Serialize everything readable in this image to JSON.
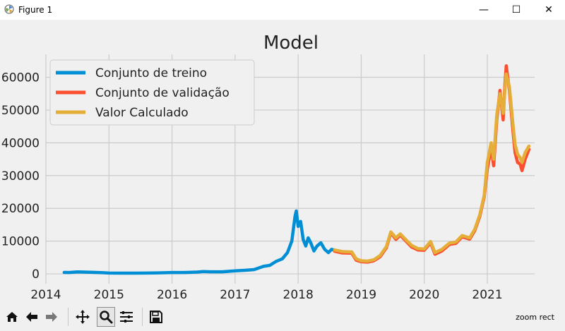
{
  "window": {
    "title": "Figure 1",
    "controls": {
      "minimize": "—",
      "maximize": "☐",
      "close": "✕"
    }
  },
  "toolbar": {
    "buttons": [
      {
        "icon": "home-icon",
        "label": "Home"
      },
      {
        "icon": "back-arrow-icon",
        "label": "Back"
      },
      {
        "icon": "forward-arrow-icon",
        "label": "Forward"
      },
      {
        "icon": "pan-icon",
        "label": "Pan"
      },
      {
        "icon": "zoom-icon",
        "label": "Zoom"
      },
      {
        "icon": "subplots-icon",
        "label": "Subplots"
      },
      {
        "icon": "save-icon",
        "label": "Save"
      }
    ],
    "status_text": "zoom rect"
  },
  "chart_data": {
    "type": "line",
    "title": "Model",
    "xlabel": "",
    "ylabel": "",
    "xlim": [
      2014.0,
      2021.75
    ],
    "ylim": [
      -3000,
      67000
    ],
    "x_ticks": [
      2014,
      2015,
      2016,
      2017,
      2018,
      2019,
      2020,
      2021
    ],
    "x_tick_labels": [
      "2014",
      "2015",
      "2016",
      "2017",
      "2018",
      "2019",
      "2020",
      "2021"
    ],
    "y_ticks": [
      0,
      10000,
      20000,
      30000,
      40000,
      50000,
      60000
    ],
    "y_tick_labels": [
      "0",
      "10000",
      "20000",
      "30000",
      "40000",
      "50000",
      "60000"
    ],
    "grid": true,
    "legend_position": "upper-left",
    "series": [
      {
        "name": "Conjunto de treino",
        "color": "#008fd5",
        "points": [
          [
            2014.29,
            450
          ],
          [
            2014.37,
            420
          ],
          [
            2014.5,
            600
          ],
          [
            2014.7,
            500
          ],
          [
            2014.9,
            350
          ],
          [
            2015.0,
            260
          ],
          [
            2015.2,
            240
          ],
          [
            2015.4,
            230
          ],
          [
            2015.6,
            260
          ],
          [
            2015.8,
            320
          ],
          [
            2016.0,
            420
          ],
          [
            2016.2,
            430
          ],
          [
            2016.4,
            560
          ],
          [
            2016.5,
            700
          ],
          [
            2016.6,
            650
          ],
          [
            2016.8,
            640
          ],
          [
            2017.0,
            950
          ],
          [
            2017.15,
            1100
          ],
          [
            2017.3,
            1300
          ],
          [
            2017.45,
            2300
          ],
          [
            2017.55,
            2600
          ],
          [
            2017.65,
            3800
          ],
          [
            2017.75,
            4600
          ],
          [
            2017.83,
            6500
          ],
          [
            2017.9,
            10000
          ],
          [
            2017.95,
            17500
          ],
          [
            2017.97,
            19200
          ],
          [
            2018.0,
            14500
          ],
          [
            2018.04,
            16000
          ],
          [
            2018.08,
            10500
          ],
          [
            2018.12,
            8500
          ],
          [
            2018.16,
            11000
          ],
          [
            2018.2,
            9500
          ],
          [
            2018.25,
            7000
          ],
          [
            2018.3,
            8500
          ],
          [
            2018.36,
            9500
          ],
          [
            2018.42,
            7500
          ],
          [
            2018.48,
            6500
          ],
          [
            2018.53,
            7500
          ],
          [
            2018.58,
            7200
          ]
        ]
      },
      {
        "name": "Conjunto de validação",
        "color": "#fc4f30",
        "points": [
          [
            2018.58,
            6900
          ],
          [
            2018.7,
            6400
          ],
          [
            2018.85,
            6300
          ],
          [
            2018.92,
            4200
          ],
          [
            2019.0,
            3700
          ],
          [
            2019.1,
            3600
          ],
          [
            2019.2,
            4000
          ],
          [
            2019.3,
            5200
          ],
          [
            2019.4,
            8000
          ],
          [
            2019.47,
            12500
          ],
          [
            2019.55,
            10500
          ],
          [
            2019.62,
            11800
          ],
          [
            2019.72,
            9800
          ],
          [
            2019.8,
            8200
          ],
          [
            2019.9,
            7300
          ],
          [
            2020.0,
            7200
          ],
          [
            2020.1,
            9500
          ],
          [
            2020.17,
            6000
          ],
          [
            2020.28,
            7000
          ],
          [
            2020.4,
            9000
          ],
          [
            2020.5,
            9300
          ],
          [
            2020.6,
            11300
          ],
          [
            2020.72,
            10600
          ],
          [
            2020.8,
            13200
          ],
          [
            2020.88,
            17500
          ],
          [
            2020.95,
            23500
          ],
          [
            2021.0,
            32000
          ],
          [
            2021.06,
            38500
          ],
          [
            2021.1,
            33000
          ],
          [
            2021.15,
            47000
          ],
          [
            2021.2,
            56000
          ],
          [
            2021.25,
            47000
          ],
          [
            2021.28,
            58000
          ],
          [
            2021.3,
            63500
          ],
          [
            2021.35,
            56000
          ],
          [
            2021.4,
            45000
          ],
          [
            2021.44,
            37000
          ],
          [
            2021.48,
            34000
          ],
          [
            2021.52,
            33500
          ],
          [
            2021.55,
            31500
          ],
          [
            2021.6,
            35000
          ],
          [
            2021.66,
            38000
          ]
        ]
      },
      {
        "name": "Valor Calculado",
        "color": "#e5ae38",
        "points": [
          [
            2018.58,
            7300
          ],
          [
            2018.7,
            6800
          ],
          [
            2018.85,
            6700
          ],
          [
            2018.92,
            4600
          ],
          [
            2019.0,
            4000
          ],
          [
            2019.1,
            3900
          ],
          [
            2019.2,
            4300
          ],
          [
            2019.3,
            5600
          ],
          [
            2019.4,
            8400
          ],
          [
            2019.47,
            12800
          ],
          [
            2019.55,
            11000
          ],
          [
            2019.62,
            12200
          ],
          [
            2019.72,
            10200
          ],
          [
            2019.8,
            8700
          ],
          [
            2019.9,
            7700
          ],
          [
            2020.0,
            7600
          ],
          [
            2020.1,
            9900
          ],
          [
            2020.17,
            6500
          ],
          [
            2020.28,
            7500
          ],
          [
            2020.4,
            9400
          ],
          [
            2020.5,
            9700
          ],
          [
            2020.6,
            11700
          ],
          [
            2020.72,
            11000
          ],
          [
            2020.8,
            13600
          ],
          [
            2020.88,
            18000
          ],
          [
            2020.95,
            24000
          ],
          [
            2021.0,
            34000
          ],
          [
            2021.06,
            40000
          ],
          [
            2021.1,
            35000
          ],
          [
            2021.15,
            48500
          ],
          [
            2021.2,
            55000
          ],
          [
            2021.25,
            49000
          ],
          [
            2021.28,
            56500
          ],
          [
            2021.3,
            61000
          ],
          [
            2021.35,
            57000
          ],
          [
            2021.4,
            47000
          ],
          [
            2021.44,
            39500
          ],
          [
            2021.48,
            36500
          ],
          [
            2021.52,
            35500
          ],
          [
            2021.55,
            34000
          ],
          [
            2021.6,
            37000
          ],
          [
            2021.66,
            39000
          ]
        ]
      }
    ]
  }
}
